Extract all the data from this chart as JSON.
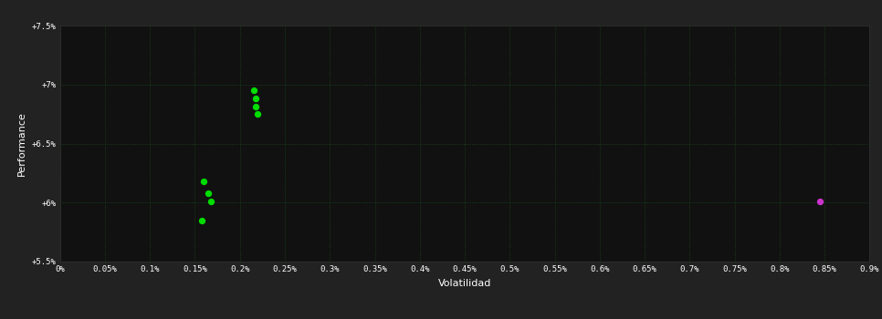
{
  "background_color": "#222222",
  "plot_bg_color": "#111111",
  "grid_color": "#1a4a1a",
  "grid_style": ":",
  "xlabel": "Volatilidad",
  "ylabel": "Performance",
  "xlim": [
    0,
    0.009
  ],
  "ylim": [
    0.055,
    0.075
  ],
  "xtick_vals": [
    0,
    0.0005,
    0.001,
    0.0015,
    0.002,
    0.0025,
    0.003,
    0.0035,
    0.004,
    0.0045,
    0.005,
    0.0055,
    0.006,
    0.0065,
    0.007,
    0.0075,
    0.008,
    0.0085,
    0.009
  ],
  "xtick_labels": [
    "0%",
    "0.05%",
    "0.1%",
    "0.15%",
    "0.2%",
    "0.25%",
    "0.3%",
    "0.35%",
    "0.4%",
    "0.45%",
    "0.5%",
    "0.55%",
    "0.6%",
    "0.65%",
    "0.7%",
    "0.75%",
    "0.8%",
    "0.85%",
    "0.9%"
  ],
  "ytick_vals": [
    0.055,
    0.06,
    0.065,
    0.07,
    0.075
  ],
  "ytick_labels": [
    "+5.5%",
    "+6%",
    "+6.5%",
    "+7%",
    "+7.5%"
  ],
  "green_points": [
    [
      0.00215,
      0.0695
    ],
    [
      0.00217,
      0.0688
    ],
    [
      0.00218,
      0.0681
    ],
    [
      0.0022,
      0.0675
    ],
    [
      0.0016,
      0.0618
    ],
    [
      0.00165,
      0.0608
    ],
    [
      0.00168,
      0.0601
    ],
    [
      0.00158,
      0.0585
    ]
  ],
  "magenta_points": [
    [
      0.00845,
      0.0601
    ]
  ],
  "green_color": "#00dd00",
  "magenta_color": "#cc33cc",
  "marker_size": 28
}
